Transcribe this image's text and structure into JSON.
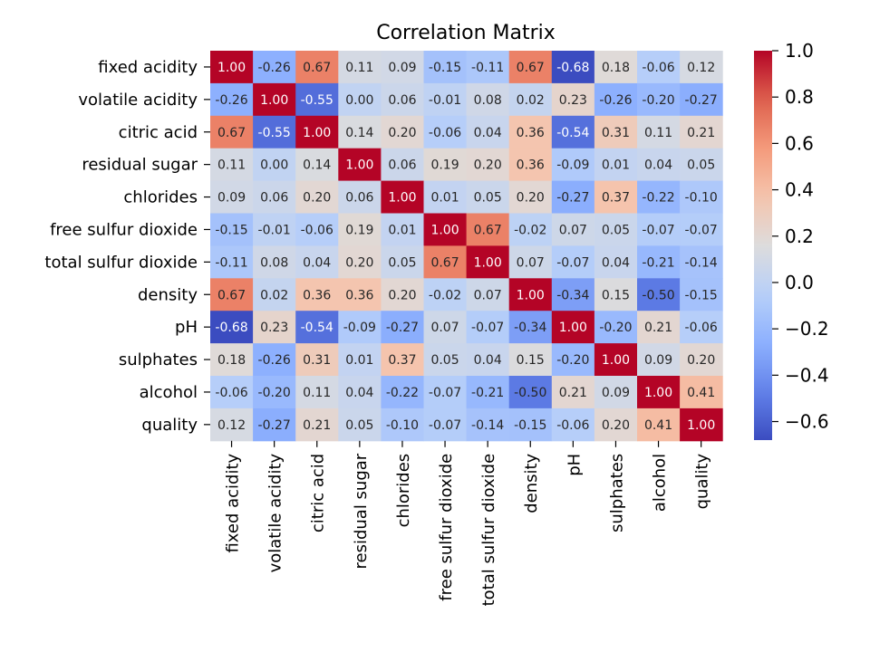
{
  "chart_data": {
    "type": "heatmap",
    "title": "Correlation Matrix",
    "xlabel": "",
    "ylabel": "",
    "x_categories": [
      "fixed acidity",
      "volatile acidity",
      "citric acid",
      "residual sugar",
      "chlorides",
      "free sulfur dioxide",
      "total sulfur dioxide",
      "density",
      "pH",
      "sulphates",
      "alcohol",
      "quality"
    ],
    "y_categories": [
      "fixed acidity",
      "volatile acidity",
      "citric acid",
      "residual sugar",
      "chlorides",
      "free sulfur dioxide",
      "total sulfur dioxide",
      "density",
      "pH",
      "sulphates",
      "alcohol",
      "quality"
    ],
    "values": [
      [
        1.0,
        -0.26,
        0.67,
        0.11,
        0.09,
        -0.15,
        -0.11,
        0.67,
        -0.68,
        0.18,
        -0.06,
        0.12
      ],
      [
        -0.26,
        1.0,
        -0.55,
        0.0,
        0.06,
        -0.01,
        0.08,
        0.02,
        0.23,
        -0.26,
        -0.2,
        -0.27
      ],
      [
        0.67,
        -0.55,
        1.0,
        0.14,
        0.2,
        -0.06,
        0.04,
        0.36,
        -0.54,
        0.31,
        0.11,
        0.21
      ],
      [
        0.11,
        0.0,
        0.14,
        1.0,
        0.06,
        0.19,
        0.2,
        0.36,
        -0.09,
        0.01,
        0.04,
        0.05
      ],
      [
        0.09,
        0.06,
        0.2,
        0.06,
        1.0,
        0.01,
        0.05,
        0.2,
        -0.27,
        0.37,
        -0.22,
        -0.1
      ],
      [
        -0.15,
        -0.01,
        -0.06,
        0.19,
        0.01,
        1.0,
        0.67,
        -0.02,
        0.07,
        0.05,
        -0.07,
        -0.07
      ],
      [
        -0.11,
        0.08,
        0.04,
        0.2,
        0.05,
        0.67,
        1.0,
        0.07,
        -0.07,
        0.04,
        -0.21,
        -0.14
      ],
      [
        0.67,
        0.02,
        0.36,
        0.36,
        0.2,
        -0.02,
        0.07,
        1.0,
        -0.34,
        0.15,
        -0.5,
        -0.15
      ],
      [
        -0.68,
        0.23,
        -0.54,
        -0.09,
        -0.27,
        0.07,
        -0.07,
        -0.34,
        1.0,
        -0.2,
        0.21,
        -0.06
      ],
      [
        0.18,
        -0.26,
        0.31,
        0.01,
        0.37,
        0.05,
        0.04,
        0.15,
        -0.2,
        1.0,
        0.09,
        0.2
      ],
      [
        -0.06,
        -0.2,
        0.11,
        0.04,
        -0.22,
        -0.07,
        -0.21,
        -0.5,
        0.21,
        0.09,
        1.0,
        0.41
      ],
      [
        0.12,
        -0.27,
        0.21,
        0.05,
        -0.1,
        -0.07,
        -0.14,
        -0.15,
        -0.06,
        0.2,
        0.41,
        1.0
      ]
    ],
    "value_range": [
      -0.68,
      1.0
    ],
    "colormap": "coolwarm",
    "colors": {
      "low": "#3b4cc0",
      "mid": "#dddcdc",
      "high": "#b40426"
    },
    "colorbar": {
      "ticks": [
        1.0,
        0.8,
        0.6,
        0.4,
        0.2,
        0.0,
        -0.2,
        -0.4,
        -0.6
      ],
      "tick_labels": [
        "1.0",
        "0.8",
        "0.6",
        "0.4",
        "0.2",
        "0.0",
        "−0.2",
        "−0.4",
        "−0.6"
      ]
    },
    "annotations": true,
    "grid": false
  }
}
